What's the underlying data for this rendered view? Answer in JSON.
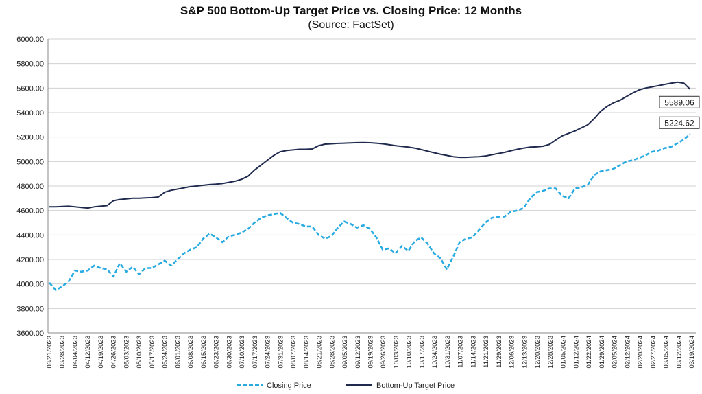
{
  "chart_data": {
    "type": "line",
    "title": "S&P 500 Bottom-Up Target Price vs. Closing Price: 12 Months",
    "subtitle": "(Source: FactSet)",
    "ylim": [
      3600,
      6000
    ],
    "yticks": [
      "6000.00",
      "5800.00",
      "5600.00",
      "5400.00",
      "5200.00",
      "5000.00",
      "4800.00",
      "4600.00",
      "4400.00",
      "4200.00",
      "4000.00",
      "3800.00",
      "3600.00"
    ],
    "ytick_values": [
      6000,
      5800,
      5600,
      5400,
      5200,
      5000,
      4800,
      4600,
      4400,
      4200,
      4000,
      3800,
      3600
    ],
    "xticks": [
      "03/21/2023",
      "03/28/2023",
      "04/04/2023",
      "04/12/2023",
      "04/19/2023",
      "04/26/2023",
      "05/03/2023",
      "05/10/2023",
      "05/17/2023",
      "05/24/2023",
      "06/01/2023",
      "06/08/2023",
      "06/15/2023",
      "06/23/2023",
      "06/30/2023",
      "07/10/2023",
      "07/17/2023",
      "07/24/2023",
      "07/31/2023",
      "08/07/2023",
      "08/14/2023",
      "08/21/2023",
      "08/28/2023",
      "09/05/2023",
      "09/12/2023",
      "09/19/2023",
      "09/26/2023",
      "10/03/2023",
      "10/10/2023",
      "10/17/2023",
      "10/24/2023",
      "10/31/2023",
      "11/07/2023",
      "11/14/2023",
      "11/21/2023",
      "11/29/2023",
      "12/06/2023",
      "12/13/2023",
      "12/20/2023",
      "12/28/2023",
      "01/05/2024",
      "01/12/2024",
      "01/22/2024",
      "01/29/2024",
      "02/05/2024",
      "02/12/2024",
      "02/20/2024",
      "02/27/2024",
      "03/05/2024",
      "03/12/2024",
      "03/19/2024"
    ],
    "grid": true,
    "legend_position": "bottom",
    "series": [
      {
        "name": "Closing Price",
        "style": "dashed",
        "color": "#29abe2",
        "end_label": "5224.62",
        "values": [
          4010,
          3950,
          3980,
          4020,
          4110,
          4100,
          4110,
          4150,
          4130,
          4120,
          4060,
          4170,
          4100,
          4140,
          4080,
          4130,
          4130,
          4160,
          4190,
          4150,
          4200,
          4250,
          4280,
          4300,
          4370,
          4410,
          4380,
          4340,
          4390,
          4400,
          4420,
          4450,
          4500,
          4540,
          4560,
          4570,
          4580,
          4540,
          4500,
          4490,
          4470,
          4470,
          4400,
          4370,
          4390,
          4460,
          4510,
          4490,
          4460,
          4480,
          4450,
          4380,
          4280,
          4290,
          4250,
          4310,
          4270,
          4350,
          4380,
          4330,
          4250,
          4210,
          4120,
          4220,
          4340,
          4370,
          4380,
          4440,
          4500,
          4540,
          4550,
          4550,
          4590,
          4600,
          4620,
          4700,
          4750,
          4760,
          4780,
          4780,
          4720,
          4700,
          4780,
          4790,
          4810,
          4890,
          4920,
          4930,
          4940,
          4970,
          5000,
          5010,
          5030,
          5050,
          5080,
          5090,
          5110,
          5120,
          5150,
          5180,
          5224.62
        ]
      },
      {
        "name": "Bottom-Up Target Price",
        "style": "solid",
        "color": "#1f2a4e",
        "end_label": "5589.06",
        "values": [
          4630,
          4630,
          4633,
          4635,
          4630,
          4625,
          4620,
          4630,
          4635,
          4640,
          4680,
          4690,
          4695,
          4700,
          4700,
          4703,
          4705,
          4710,
          4750,
          4765,
          4775,
          4785,
          4795,
          4800,
          4806,
          4812,
          4815,
          4820,
          4830,
          4840,
          4855,
          4880,
          4930,
          4970,
          5010,
          5050,
          5080,
          5090,
          5095,
          5100,
          5100,
          5103,
          5130,
          5142,
          5145,
          5148,
          5150,
          5152,
          5154,
          5155,
          5153,
          5150,
          5145,
          5138,
          5130,
          5124,
          5118,
          5110,
          5098,
          5085,
          5072,
          5060,
          5050,
          5040,
          5035,
          5035,
          5038,
          5040,
          5045,
          5055,
          5065,
          5075,
          5088,
          5100,
          5110,
          5118,
          5120,
          5125,
          5140,
          5175,
          5210,
          5230,
          5250,
          5275,
          5300,
          5350,
          5410,
          5450,
          5480,
          5500,
          5530,
          5560,
          5585,
          5600,
          5610,
          5620,
          5630,
          5640,
          5648,
          5640,
          5589.06
        ]
      }
    ]
  }
}
